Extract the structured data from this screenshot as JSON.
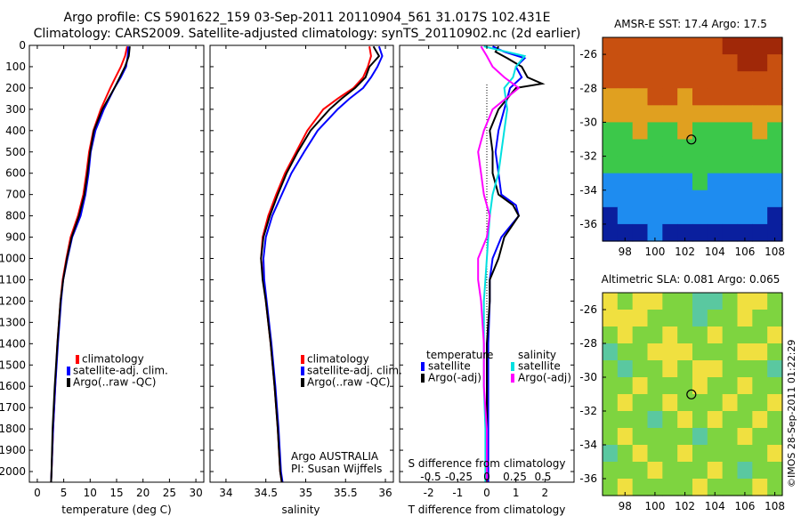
{
  "header": {
    "title_line1": "Argo profile: CS 5901622_159 03-Sep-2011 20110904_561 31.017S 102.431E",
    "title_line2": "Climatology: CARS2009. Satellite-adjusted climatology: synTS_20110902.nc (2d earlier)"
  },
  "credit": "©IMOS 28-Sep-2011 01:22:29",
  "chart_data": [
    {
      "id": "temperature",
      "type": "line",
      "xlabel": "temperature (deg C)",
      "ylabel": "",
      "xlim": [
        -1.5,
        31.5
      ],
      "ylim": [
        0,
        2050
      ],
      "y_reversed": true,
      "xticks": [
        0,
        5,
        10,
        15,
        20,
        25,
        30
      ],
      "yticks": [
        0,
        100,
        200,
        300,
        400,
        500,
        600,
        700,
        800,
        900,
        1000,
        1100,
        1200,
        1300,
        1400,
        1500,
        1600,
        1700,
        1800,
        1900,
        2000
      ],
      "legend": {
        "placement": "lower-center",
        "entries": [
          {
            "label": "climatology",
            "color": "#ff0000"
          },
          {
            "label": "satellite-adj. clim.",
            "color": "#0000ff"
          },
          {
            "label": "Argo(..raw -QC)",
            "color": "#000000"
          }
        ]
      },
      "series": [
        {
          "color": "#ff0000",
          "depth": [
            5,
            50,
            100,
            150,
            200,
            300,
            400,
            500,
            600,
            700,
            800,
            900,
            1000,
            1100,
            1200,
            1400,
            1600,
            1800,
            2000,
            2050
          ],
          "values": [
            17.0,
            16.6,
            15.8,
            14.8,
            13.8,
            12.0,
            10.6,
            9.8,
            9.3,
            8.7,
            7.7,
            6.3,
            5.5,
            4.8,
            4.4,
            3.8,
            3.4,
            3.0,
            2.7,
            2.6
          ]
        },
        {
          "color": "#0000ff",
          "depth": [
            5,
            50,
            100,
            150,
            200,
            300,
            400,
            500,
            600,
            700,
            800,
            900,
            1000,
            1100,
            1200,
            1400,
            1600,
            1800,
            2000,
            2050
          ],
          "values": [
            17.2,
            17.1,
            16.8,
            15.8,
            14.6,
            12.6,
            11.0,
            10.1,
            9.7,
            9.1,
            8.2,
            6.6,
            5.7,
            4.9,
            4.5,
            3.9,
            3.4,
            3.0,
            2.7,
            2.6
          ]
        },
        {
          "color": "#000000",
          "depth": [
            5,
            50,
            100,
            150,
            200,
            300,
            400,
            500,
            600,
            700,
            800,
            900,
            1000,
            1100,
            1200,
            1400,
            1600,
            1800,
            2000,
            2050
          ],
          "values": [
            17.5,
            17.3,
            16.6,
            15.6,
            14.6,
            12.3,
            10.7,
            10.0,
            9.5,
            8.9,
            7.9,
            6.5,
            5.6,
            4.9,
            4.4,
            3.8,
            3.3,
            2.9,
            2.7,
            2.6
          ]
        }
      ]
    },
    {
      "id": "salinity",
      "type": "line",
      "xlabel": "salinity",
      "ylabel": "",
      "xlim": [
        33.8,
        36.1
      ],
      "ylim": [
        0,
        2050
      ],
      "y_reversed": true,
      "xticks": [
        34,
        34.5,
        35,
        35.5,
        36
      ],
      "legend": {
        "placement": "lower-center",
        "entries": [
          {
            "label": "climatology",
            "color": "#ff0000"
          },
          {
            "label": "satellite-adj. clim.",
            "color": "#0000ff"
          },
          {
            "label": "Argo(..raw -QC)",
            "color": "#000000"
          }
        ]
      },
      "annotations": [
        "Argo AUSTRALIA",
        "PI: Susan Wijffels"
      ],
      "series": [
        {
          "color": "#ff0000",
          "depth": [
            5,
            50,
            100,
            150,
            200,
            250,
            300,
            400,
            500,
            600,
            700,
            800,
            900,
            1000,
            1100,
            1200,
            1400,
            1600,
            1800,
            2000,
            2050
          ],
          "values": [
            35.8,
            35.82,
            35.78,
            35.72,
            35.6,
            35.4,
            35.22,
            35.02,
            34.88,
            34.74,
            34.63,
            34.53,
            34.46,
            34.44,
            34.47,
            34.5,
            34.56,
            34.61,
            34.65,
            34.68,
            34.7
          ]
        },
        {
          "color": "#0000ff",
          "depth": [
            5,
            50,
            100,
            150,
            200,
            250,
            300,
            400,
            500,
            600,
            700,
            800,
            900,
            1000,
            1100,
            1200,
            1400,
            1600,
            1800,
            2000,
            2050
          ],
          "values": [
            35.92,
            35.96,
            35.9,
            35.82,
            35.72,
            35.55,
            35.4,
            35.15,
            34.98,
            34.82,
            34.7,
            34.58,
            34.5,
            34.47,
            34.48,
            34.51,
            34.57,
            34.62,
            34.66,
            34.69,
            34.71
          ]
        },
        {
          "color": "#000000",
          "depth": [
            5,
            50,
            100,
            150,
            200,
            250,
            300,
            400,
            500,
            600,
            700,
            800,
            900,
            1000,
            1100,
            1200,
            1400,
            1600,
            1800,
            2000,
            2050
          ],
          "values": [
            35.85,
            35.92,
            35.8,
            35.75,
            35.62,
            35.45,
            35.3,
            35.06,
            34.9,
            34.76,
            34.65,
            34.55,
            34.47,
            34.44,
            34.46,
            34.5,
            34.56,
            34.61,
            34.65,
            34.68,
            34.7
          ]
        }
      ]
    },
    {
      "id": "difference",
      "type": "line",
      "xlabel": "T difference from climatology",
      "xlabel_top": "S difference from climatology",
      "xlim": [
        -3,
        3
      ],
      "ylim": [
        0,
        2050
      ],
      "y_reversed": true,
      "xticks": [
        -2,
        -1,
        0,
        1,
        2
      ],
      "xticks_s": [
        "-0.5",
        "-0.25",
        "0",
        "0.25",
        "0.5"
      ],
      "zero_line": true,
      "legend": {
        "placement": "lower-center",
        "groups": [
          {
            "title": "temperature",
            "entries": [
              {
                "label": "satellite",
                "color": "#0000ff"
              },
              {
                "label": "Argo(-adj)",
                "color": "#000000"
              }
            ]
          },
          {
            "title": "salinity",
            "entries": [
              {
                "label": "satellite",
                "color": "#00e0e0"
              },
              {
                "label": "Argo(-adj)",
                "color": "#ff00ff"
              }
            ]
          }
        ]
      },
      "series": [
        {
          "color": "#0000ff",
          "depth": [
            5,
            30,
            60,
            100,
            150,
            200,
            300,
            400,
            500,
            600,
            700,
            750,
            800,
            900,
            1000,
            1100,
            1200,
            1400,
            1600,
            1800,
            2000,
            2050
          ],
          "values": [
            0.2,
            0.6,
            1.3,
            1.0,
            1.2,
            0.8,
            0.6,
            0.4,
            0.3,
            0.4,
            0.5,
            1.0,
            1.1,
            0.5,
            0.2,
            0.1,
            0.1,
            0.05,
            0.05,
            0.05,
            0.05,
            0.05
          ]
        },
        {
          "color": "#000000",
          "depth": [
            5,
            30,
            60,
            100,
            150,
            180,
            200,
            300,
            400,
            500,
            600,
            700,
            750,
            800,
            900,
            1000,
            1100,
            1200,
            1400,
            1600,
            1800,
            2000,
            2050
          ],
          "values": [
            0.4,
            0.3,
            0.7,
            1.2,
            1.4,
            1.9,
            1.0,
            0.4,
            0.1,
            0.2,
            0.2,
            0.4,
            0.9,
            1.1,
            0.6,
            0.4,
            0.1,
            0.1,
            0.0,
            0.0,
            0.0,
            0.0,
            0.0
          ]
        },
        {
          "color": "#00e0e0",
          "depth": [
            5,
            50,
            100,
            150,
            200,
            300,
            400,
            500,
            600,
            700,
            800,
            900,
            1000,
            1100,
            1200,
            1400,
            1600,
            1800,
            2000,
            2050
          ],
          "values": [
            -0.1,
            1.3,
            1.0,
            0.9,
            0.6,
            0.7,
            0.6,
            0.5,
            0.4,
            0.2,
            0.1,
            0.05,
            0.0,
            -0.05,
            -0.1,
            -0.1,
            -0.1,
            -0.05,
            -0.05,
            -0.05
          ]
        },
        {
          "color": "#ff00ff",
          "depth": [
            5,
            50,
            100,
            150,
            200,
            300,
            400,
            500,
            600,
            700,
            800,
            900,
            1000,
            1100,
            1200,
            1400,
            1600,
            1800,
            2000,
            2050
          ],
          "values": [
            -0.2,
            0.0,
            0.2,
            0.6,
            1.1,
            0.2,
            -0.1,
            -0.3,
            -0.2,
            -0.1,
            0.1,
            0.0,
            -0.3,
            -0.3,
            -0.2,
            -0.1,
            -0.1,
            0.0,
            0.0,
            0.0
          ]
        }
      ]
    },
    {
      "id": "sst-map",
      "type": "heatmap",
      "title": "AMSR-E SST: 17.4 Argo: 17.5",
      "xticks": [
        98,
        100,
        102,
        104,
        106,
        108
      ],
      "yticks": [
        -26,
        -28,
        -30,
        -32,
        -34,
        -36
      ],
      "xlim": [
        96.5,
        108.5
      ],
      "ylim": [
        -37,
        -25
      ],
      "argo_position": {
        "lon": 102.431,
        "lat": -31.017
      },
      "grid": [
        [
          4,
          4,
          4,
          4,
          4,
          4,
          4,
          4,
          5,
          5,
          5,
          5
        ],
        [
          4,
          4,
          4,
          4,
          4,
          4,
          4,
          4,
          4,
          5,
          5,
          4
        ],
        [
          4,
          4,
          4,
          4,
          4,
          4,
          4,
          4,
          4,
          4,
          4,
          4
        ],
        [
          3,
          3,
          3,
          4,
          4,
          3,
          4,
          4,
          4,
          4,
          4,
          4
        ],
        [
          3,
          3,
          3,
          3,
          3,
          3,
          3,
          3,
          3,
          3,
          3,
          3
        ],
        [
          2,
          2,
          3,
          2,
          2,
          3,
          2,
          2,
          2,
          2,
          3,
          2
        ],
        [
          2,
          2,
          2,
          2,
          2,
          2,
          2,
          2,
          2,
          2,
          2,
          2
        ],
        [
          2,
          2,
          2,
          2,
          2,
          2,
          2,
          2,
          2,
          2,
          2,
          2
        ],
        [
          1,
          1,
          1,
          1,
          1,
          1,
          2,
          1,
          1,
          1,
          1,
          1
        ],
        [
          1,
          1,
          1,
          1,
          1,
          1,
          1,
          1,
          1,
          1,
          1,
          1
        ],
        [
          0,
          1,
          1,
          1,
          1,
          1,
          1,
          1,
          1,
          1,
          1,
          0
        ],
        [
          0,
          0,
          0,
          1,
          0,
          0,
          0,
          0,
          0,
          0,
          0,
          0
        ]
      ]
    },
    {
      "id": "sla-map",
      "type": "heatmap",
      "title": "Altimetric SLA: 0.081 Argo: 0.065",
      "xticks": [
        98,
        100,
        102,
        104,
        106,
        108
      ],
      "yticks": [
        -26,
        -28,
        -30,
        -32,
        -34,
        -36
      ],
      "xlim": [
        96.5,
        108.5
      ],
      "ylim": [
        -37,
        -25
      ],
      "argo_position": {
        "lon": 102.431,
        "lat": -31.017
      },
      "grid": [
        [
          3,
          2,
          3,
          3,
          2,
          2,
          1,
          1,
          2,
          3,
          3,
          2
        ],
        [
          3,
          3,
          3,
          2,
          2,
          2,
          1,
          2,
          2,
          3,
          2,
          2
        ],
        [
          2,
          3,
          2,
          2,
          3,
          2,
          2,
          3,
          2,
          2,
          2,
          3
        ],
        [
          1,
          2,
          2,
          3,
          3,
          3,
          2,
          2,
          2,
          3,
          3,
          2
        ],
        [
          2,
          1,
          2,
          2,
          3,
          2,
          3,
          3,
          2,
          2,
          2,
          1
        ],
        [
          2,
          2,
          3,
          2,
          2,
          2,
          3,
          2,
          2,
          3,
          2,
          2
        ],
        [
          2,
          3,
          2,
          2,
          3,
          2,
          2,
          2,
          3,
          2,
          2,
          3
        ],
        [
          2,
          2,
          2,
          1,
          2,
          3,
          2,
          3,
          2,
          2,
          3,
          2
        ],
        [
          2,
          3,
          2,
          2,
          2,
          2,
          1,
          2,
          2,
          3,
          2,
          2
        ],
        [
          1,
          2,
          3,
          2,
          2,
          3,
          2,
          2,
          2,
          2,
          2,
          3
        ],
        [
          2,
          2,
          2,
          3,
          2,
          2,
          2,
          3,
          2,
          1,
          2,
          2
        ],
        [
          2,
          3,
          2,
          2,
          2,
          2,
          3,
          2,
          2,
          2,
          3,
          2
        ]
      ]
    }
  ]
}
